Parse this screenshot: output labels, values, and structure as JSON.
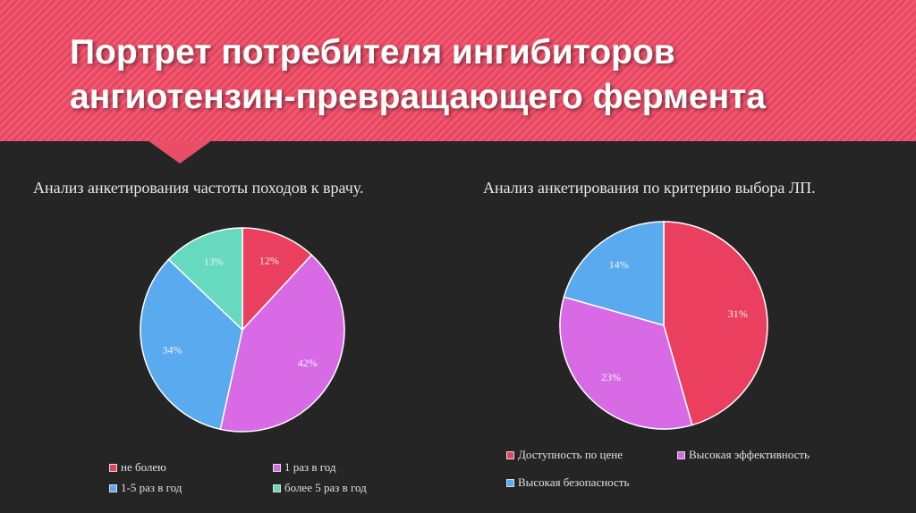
{
  "slide": {
    "title_line1": "Портрет потребителя ингибиторов",
    "title_line2": "ангиотензин-превращающего фермента"
  },
  "colors": {
    "header": "#e8455f",
    "background": "#252525",
    "red": "#ea3f5e",
    "magenta": "#d86ae6",
    "blue": "#5aaaf0",
    "teal": "#66d9bf"
  },
  "chart_data": [
    {
      "type": "pie",
      "title": "Анализ анкетирования частоты походов к врачу.",
      "categories": [
        "не болею",
        "1 раз в год",
        "1-5 раз в год",
        "более 5 раз в год"
      ],
      "values": [
        12,
        42,
        34,
        13
      ],
      "labels": [
        "12%",
        "42%",
        "34%",
        "13%"
      ],
      "colors": [
        "#ea3f5e",
        "#d86ae6",
        "#5aaaf0",
        "#66d9bf"
      ],
      "legend_position": "bottom"
    },
    {
      "type": "pie",
      "title": "Анализ анкетирования по критерию выбора ЛП.",
      "categories": [
        "Доступность по цене",
        "Высокая эффективность",
        "Высокая безопасность"
      ],
      "values": [
        31,
        23,
        14
      ],
      "labels": [
        "31%",
        "23%",
        "14%"
      ],
      "colors": [
        "#ea3f5e",
        "#d86ae6",
        "#5aaaf0"
      ],
      "legend_position": "bottom"
    }
  ]
}
